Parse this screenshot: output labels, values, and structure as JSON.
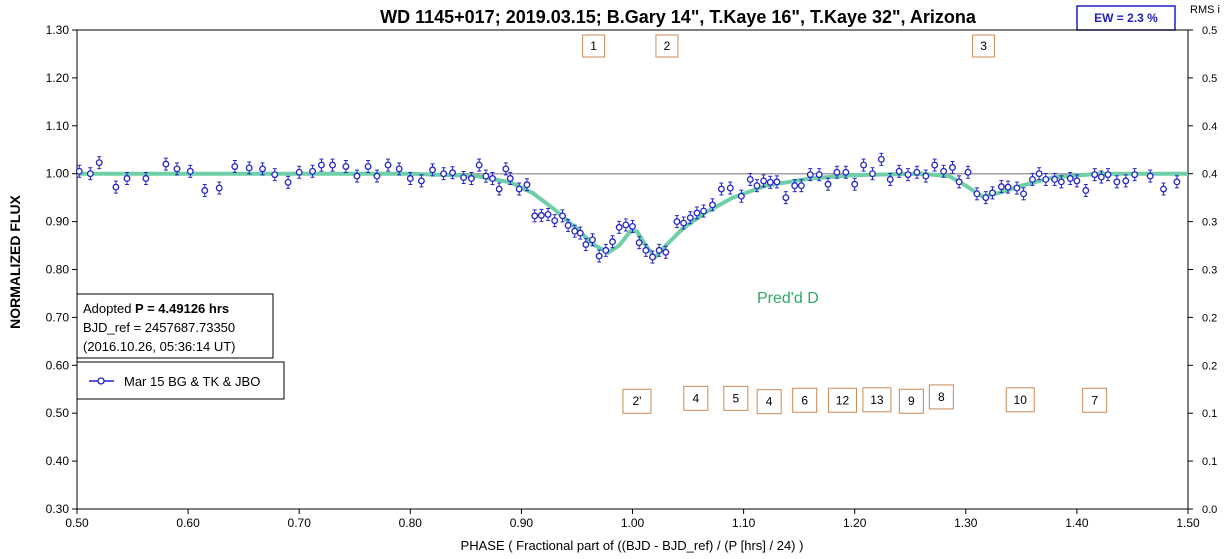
{
  "chart_data": {
    "type": "scatter",
    "title": "WD 1145+017; 2019.03.15; B.Gary 14\", T.Kaye 16\", T.Kaye 32\",  Arizona",
    "xlabel": "PHASE ( Fractional part of ((BJD - BJD_ref) / (P [hrs] / 24) )",
    "ylabel": "NORMALIZED FLUX",
    "y2label": "RMS i",
    "xlim": [
      0.5,
      1.5
    ],
    "ylim": [
      0.3,
      1.3
    ],
    "y2lim": [
      0.0,
      0.5
    ],
    "x_ticks": [
      "0.50",
      "0.60",
      "0.70",
      "0.80",
      "0.90",
      "1.00",
      "1.10",
      "1.20",
      "1.30",
      "1.40",
      "1.50"
    ],
    "y_ticks": [
      "0.30",
      "0.40",
      "0.50",
      "0.60",
      "0.70",
      "0.80",
      "0.90",
      "1.00",
      "1.10",
      "1.20",
      "1.30"
    ],
    "y2_ticks": [
      "0.0",
      "0.1",
      "0.1",
      "0.2",
      "0.2",
      "0.3",
      "0.3",
      "0.4",
      "0.4",
      "0.5",
      "0.5"
    ],
    "grid": false,
    "reference_line_y": 1.0,
    "ew_label": "EW =  2.3 %",
    "series": [
      {
        "name": "Mar 15 BG & TK & JBO",
        "color": "#2424c8",
        "points": [
          [
            0.502,
            1.005
          ],
          [
            0.512,
            1.0
          ],
          [
            0.52,
            1.023
          ],
          [
            0.535,
            0.972
          ],
          [
            0.545,
            0.99
          ],
          [
            0.562,
            0.99
          ],
          [
            0.58,
            1.02
          ],
          [
            0.59,
            1.01
          ],
          [
            0.602,
            1.005
          ],
          [
            0.615,
            0.965
          ],
          [
            0.628,
            0.97
          ],
          [
            0.642,
            1.015
          ],
          [
            0.655,
            1.012
          ],
          [
            0.667,
            1.01
          ],
          [
            0.678,
            0.998
          ],
          [
            0.69,
            0.982
          ],
          [
            0.7,
            1.003
          ],
          [
            0.712,
            1.005
          ],
          [
            0.72,
            1.018
          ],
          [
            0.73,
            1.018
          ],
          [
            0.742,
            1.015
          ],
          [
            0.752,
            0.995
          ],
          [
            0.762,
            1.015
          ],
          [
            0.77,
            0.995
          ],
          [
            0.78,
            1.018
          ],
          [
            0.79,
            1.01
          ],
          [
            0.8,
            0.99
          ],
          [
            0.81,
            0.985
          ],
          [
            0.82,
            1.008
          ],
          [
            0.83,
            1.0
          ],
          [
            0.838,
            1.002
          ],
          [
            0.848,
            0.992
          ],
          [
            0.855,
            0.99
          ],
          [
            0.862,
            1.018
          ],
          [
            0.868,
            0.995
          ],
          [
            0.874,
            0.99
          ],
          [
            0.88,
            0.968
          ],
          [
            0.886,
            1.01
          ],
          [
            0.89,
            0.99
          ],
          [
            0.898,
            0.968
          ],
          [
            0.905,
            0.977
          ],
          [
            0.912,
            0.912
          ],
          [
            0.918,
            0.913
          ],
          [
            0.924,
            0.915
          ],
          [
            0.93,
            0.902
          ],
          [
            0.937,
            0.912
          ],
          [
            0.942,
            0.892
          ],
          [
            0.948,
            0.88
          ],
          [
            0.953,
            0.876
          ],
          [
            0.958,
            0.852
          ],
          [
            0.964,
            0.862
          ],
          [
            0.97,
            0.828
          ],
          [
            0.976,
            0.84
          ],
          [
            0.982,
            0.858
          ],
          [
            0.988,
            0.888
          ],
          [
            0.994,
            0.893
          ],
          [
            1.0,
            0.89
          ],
          [
            1.006,
            0.856
          ],
          [
            1.012,
            0.84
          ],
          [
            1.018,
            0.826
          ],
          [
            1.024,
            0.84
          ],
          [
            1.03,
            0.836
          ],
          [
            1.04,
            0.9
          ],
          [
            1.046,
            0.897
          ],
          [
            1.052,
            0.908
          ],
          [
            1.058,
            0.918
          ],
          [
            1.064,
            0.922
          ],
          [
            1.072,
            0.935
          ],
          [
            1.08,
            0.968
          ],
          [
            1.088,
            0.97
          ],
          [
            1.098,
            0.953
          ],
          [
            1.106,
            0.988
          ],
          [
            1.112,
            0.975
          ],
          [
            1.118,
            0.985
          ],
          [
            1.124,
            0.982
          ],
          [
            1.13,
            0.983
          ],
          [
            1.138,
            0.95
          ],
          [
            1.146,
            0.975
          ],
          [
            1.152,
            0.975
          ],
          [
            1.16,
            0.998
          ],
          [
            1.168,
            0.998
          ],
          [
            1.176,
            0.978
          ],
          [
            1.184,
            1.003
          ],
          [
            1.192,
            1.003
          ],
          [
            1.2,
            0.978
          ],
          [
            1.208,
            1.018
          ],
          [
            1.216,
            1.0
          ],
          [
            1.224,
            1.03
          ],
          [
            1.232,
            0.988
          ],
          [
            1.24,
            1.005
          ],
          [
            1.248,
            0.998
          ],
          [
            1.256,
            1.003
          ],
          [
            1.264,
            0.995
          ],
          [
            1.272,
            1.018
          ],
          [
            1.28,
            1.005
          ],
          [
            1.288,
            1.013
          ],
          [
            1.294,
            0.983
          ],
          [
            1.302,
            1.003
          ],
          [
            1.31,
            0.958
          ],
          [
            1.318,
            0.95
          ],
          [
            1.324,
            0.96
          ],
          [
            1.332,
            0.973
          ],
          [
            1.338,
            0.972
          ],
          [
            1.346,
            0.97
          ],
          [
            1.352,
            0.958
          ],
          [
            1.36,
            0.988
          ],
          [
            1.366,
            1.0
          ],
          [
            1.372,
            0.988
          ],
          [
            1.38,
            0.988
          ],
          [
            1.386,
            0.983
          ],
          [
            1.394,
            0.99
          ],
          [
            1.4,
            0.985
          ],
          [
            1.408,
            0.965
          ],
          [
            1.416,
            0.998
          ],
          [
            1.422,
            0.993
          ],
          [
            1.428,
            0.998
          ],
          [
            1.436,
            0.983
          ],
          [
            1.444,
            0.985
          ],
          [
            1.452,
            0.998
          ],
          [
            1.466,
            0.995
          ],
          [
            1.478,
            0.968
          ],
          [
            1.49,
            0.983
          ]
        ]
      }
    ],
    "model_curve": {
      "color": "#6fd0a8",
      "points": [
        [
          0.5,
          1.0
        ],
        [
          0.8,
          1.0
        ],
        [
          0.86,
          0.995
        ],
        [
          0.89,
          0.982
        ],
        [
          0.91,
          0.96
        ],
        [
          0.93,
          0.925
        ],
        [
          0.95,
          0.885
        ],
        [
          0.965,
          0.852
        ],
        [
          0.978,
          0.835
        ],
        [
          0.988,
          0.85
        ],
        [
          0.998,
          0.88
        ],
        [
          1.004,
          0.88
        ],
        [
          1.012,
          0.85
        ],
        [
          1.02,
          0.825
        ],
        [
          1.03,
          0.85
        ],
        [
          1.045,
          0.885
        ],
        [
          1.065,
          0.918
        ],
        [
          1.09,
          0.95
        ],
        [
          1.12,
          0.975
        ],
        [
          1.16,
          0.99
        ],
        [
          1.2,
          0.997
        ],
        [
          1.26,
          1.0
        ],
        [
          1.285,
          0.995
        ],
        [
          1.3,
          0.975
        ],
        [
          1.315,
          0.952
        ],
        [
          1.33,
          0.96
        ],
        [
          1.35,
          0.975
        ],
        [
          1.38,
          0.993
        ],
        [
          1.42,
          1.0
        ],
        [
          1.5,
          1.0
        ]
      ]
    },
    "annotations": {
      "pred_label": "Pred'd D",
      "top_markers": [
        {
          "label": "1",
          "x": 0.965
        },
        {
          "label": "2",
          "x": 1.031
        },
        {
          "label": "3",
          "x": 1.316
        }
      ],
      "bottom_markers": [
        {
          "label": "2'",
          "x": 1.004,
          "y": 0.525
        },
        {
          "label": "4",
          "x": 1.057,
          "y": 0.531
        },
        {
          "label": "5",
          "x": 1.093,
          "y": 0.531
        },
        {
          "label": "4",
          "x": 1.123,
          "y": 0.524
        },
        {
          "label": "6",
          "x": 1.155,
          "y": 0.527
        },
        {
          "label": "12",
          "x": 1.189,
          "y": 0.527
        },
        {
          "label": "13",
          "x": 1.22,
          "y": 0.528
        },
        {
          "label": "9",
          "x": 1.251,
          "y": 0.525
        },
        {
          "label": "8",
          "x": 1.278,
          "y": 0.534
        },
        {
          "label": "10",
          "x": 1.349,
          "y": 0.528
        },
        {
          "label": "7",
          "x": 1.416,
          "y": 0.527
        }
      ]
    }
  },
  "info_box": {
    "line1_prefix": "Adopted ",
    "line1_bold": "P = 4.49126 hrs",
    "line2": "BJD_ref = 2457687.73350",
    "line3": "(2016.10.26, 05:36:14 UT)"
  },
  "legend": {
    "label": "Mar 15 BG & TK & JBO"
  }
}
